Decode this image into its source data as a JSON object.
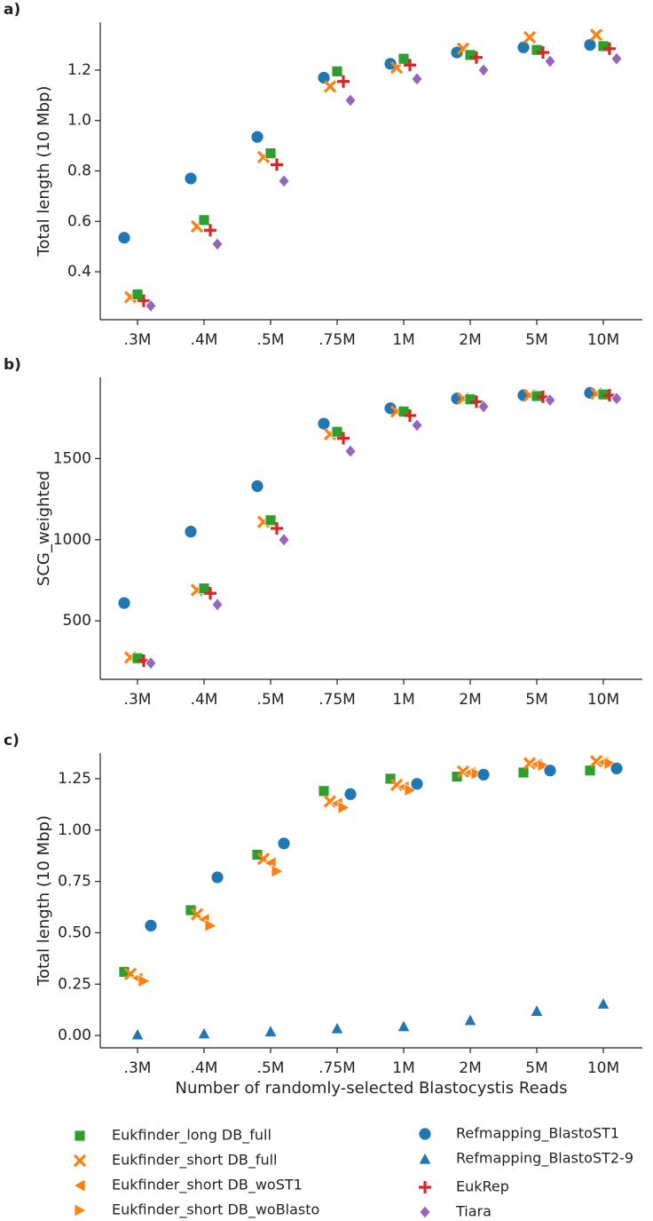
{
  "chart_data": [
    {
      "type": "scatter",
      "label": "a)",
      "ylabel": "Total length (10 Mbp)",
      "categories": [
        ".3M",
        ".4M",
        ".5M",
        ".75M",
        "1M",
        "2M",
        "5M",
        "10M"
      ],
      "ylim": [
        0.21,
        1.39
      ],
      "yticks": [
        0.4,
        0.6,
        0.8,
        {
          "value": 1,
          "label": "1.0"
        },
        1.2
      ],
      "series": [
        {
          "name": "Refmapping_BlastoST1",
          "color": "#1f77b4",
          "marker": "circle",
          "values": [
            0.535,
            0.77,
            0.935,
            1.17,
            1.225,
            1.27,
            1.29,
            1.3
          ]
        },
        {
          "name": "Eukfinder_short DB_full",
          "color": "#ff7f0e",
          "marker": "x",
          "values": [
            0.3,
            0.58,
            0.855,
            1.135,
            1.21,
            1.285,
            1.33,
            1.34
          ]
        },
        {
          "name": "Eukfinder_long DB_full",
          "color": "#2ca02c",
          "marker": "square",
          "values": [
            0.31,
            0.605,
            0.87,
            1.195,
            1.245,
            1.26,
            1.28,
            1.295
          ]
        },
        {
          "name": "EukRep",
          "color": "#d62728",
          "marker": "plus",
          "values": [
            0.285,
            0.565,
            0.825,
            1.155,
            1.22,
            1.25,
            1.27,
            1.285
          ]
        },
        {
          "name": "Tiara",
          "color": "#9467bd",
          "marker": "diamond",
          "values": [
            0.265,
            0.51,
            0.76,
            1.08,
            1.165,
            1.2,
            1.235,
            1.245
          ]
        }
      ]
    },
    {
      "type": "scatter",
      "label": "b)",
      "ylabel": "SCG_weighted",
      "categories": [
        ".3M",
        ".4M",
        ".5M",
        ".75M",
        "1M",
        "2M",
        "5M",
        "10M"
      ],
      "ylim": [
        140,
        2000
      ],
      "yticks": [
        500,
        1000,
        1500
      ],
      "series": [
        {
          "name": "Refmapping_BlastoST1",
          "color": "#1f77b4",
          "marker": "circle",
          "values": [
            610,
            1050,
            1330,
            1715,
            1810,
            1870,
            1890,
            1905
          ]
        },
        {
          "name": "Eukfinder_short DB_full",
          "color": "#ff7f0e",
          "marker": "x",
          "values": [
            275,
            690,
            1110,
            1650,
            1790,
            1870,
            1890,
            1900
          ]
        },
        {
          "name": "Eukfinder_long DB_full",
          "color": "#2ca02c",
          "marker": "square",
          "values": [
            270,
            700,
            1120,
            1665,
            1790,
            1865,
            1885,
            1895
          ]
        },
        {
          "name": "EukRep",
          "color": "#d62728",
          "marker": "plus",
          "values": [
            255,
            670,
            1070,
            1625,
            1765,
            1850,
            1880,
            1890
          ]
        },
        {
          "name": "Tiara",
          "color": "#9467bd",
          "marker": "diamond",
          "values": [
            240,
            600,
            1000,
            1545,
            1705,
            1820,
            1860,
            1870
          ]
        }
      ]
    },
    {
      "type": "scatter",
      "label": "c)",
      "ylabel": "Total length (10 Mbp)",
      "xlabel": "Number of randomly-selected Blastocystis Reads",
      "categories": [
        ".3M",
        ".4M",
        ".5M",
        ".75M",
        "1M",
        "2M",
        "5M",
        "10M"
      ],
      "ylim": [
        -0.06,
        1.375
      ],
      "yticks": [
        {
          "value": 0,
          "label": "0.00"
        },
        0.25,
        {
          "value": 0.5,
          "label": "0.50"
        },
        0.75,
        {
          "value": 1,
          "label": "1.00"
        },
        1.25
      ],
      "series": [
        {
          "name": "Eukfinder_long DB_full",
          "color": "#2ca02c",
          "marker": "square",
          "values": [
            0.31,
            0.61,
            0.88,
            1.19,
            1.25,
            1.26,
            1.28,
            1.29
          ]
        },
        {
          "name": "Eukfinder_short DB_full",
          "color": "#ff7f0e",
          "marker": "x",
          "values": [
            0.3,
            0.59,
            0.86,
            1.14,
            1.22,
            1.285,
            1.325,
            1.335
          ]
        },
        {
          "name": "Eukfinder_short DB_woST1",
          "color": "#ff7f0e",
          "marker": "tri-left",
          "values": [
            0.28,
            0.565,
            0.84,
            1.13,
            1.21,
            1.28,
            1.32,
            1.33
          ]
        },
        {
          "name": "Eukfinder_short DB_woBlasto",
          "color": "#ff7f0e",
          "marker": "tri-right",
          "values": [
            0.265,
            0.535,
            0.8,
            1.11,
            1.195,
            1.275,
            1.315,
            1.325
          ]
        },
        {
          "name": "Refmapping_BlastoST1",
          "color": "#1f77b4",
          "marker": "circle",
          "values": [
            0.535,
            0.77,
            0.935,
            1.175,
            1.225,
            1.27,
            1.29,
            1.3
          ]
        },
        {
          "name": "Refmapping_BlastoST2-9",
          "color": "#1f77b4",
          "marker": "tri-up",
          "values": [
            0.005,
            0.01,
            0.02,
            0.035,
            0.045,
            0.075,
            0.12,
            0.155
          ]
        }
      ]
    }
  ]
}
